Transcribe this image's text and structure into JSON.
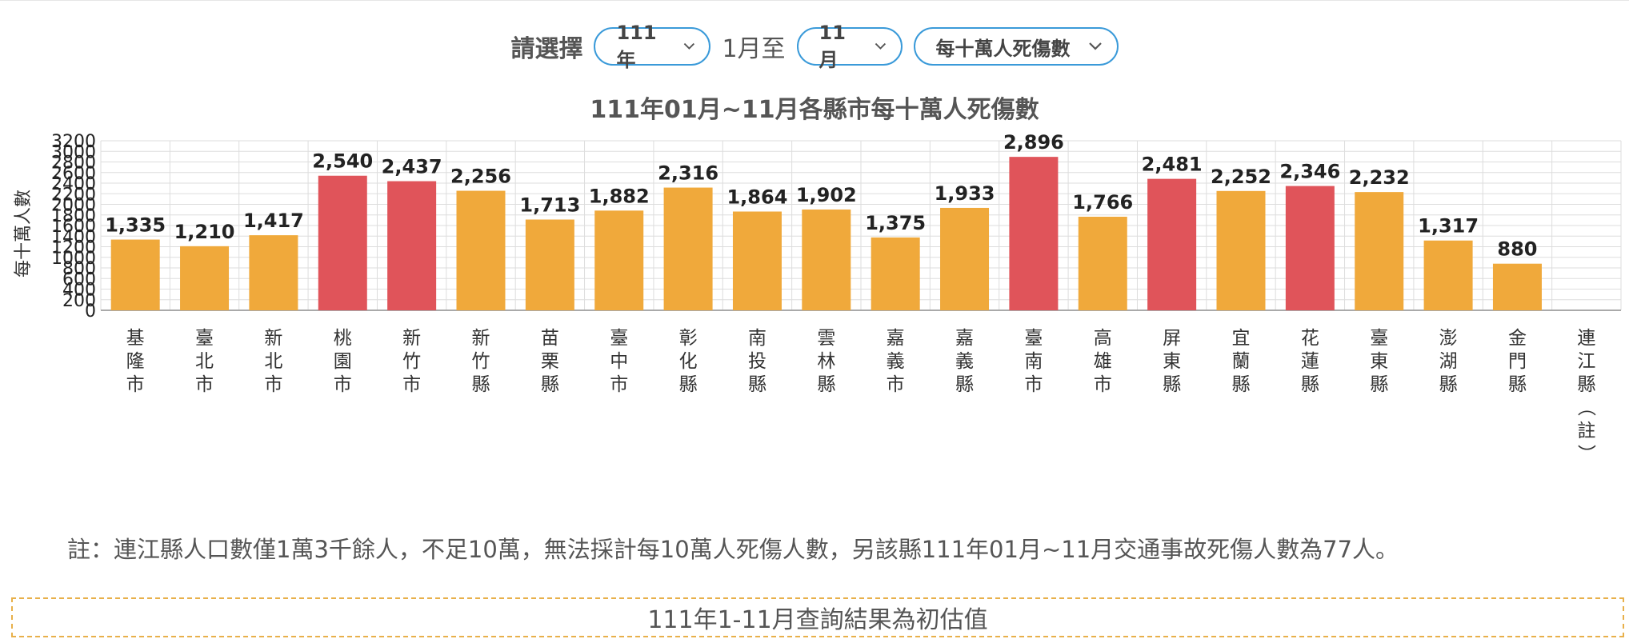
{
  "controls": {
    "prompt": "請選擇",
    "year": "111年",
    "from_text": "1月至",
    "month": "11月",
    "metric": "每十萬人死傷數"
  },
  "chart_data": {
    "type": "bar",
    "title": "111年01月~11月各縣市每十萬人死傷數",
    "ylabel": "每十萬人數",
    "xlabel": "",
    "ylim": [
      0,
      3200
    ],
    "yticks": [
      0,
      200,
      400,
      600,
      800,
      1000,
      1200,
      1400,
      1600,
      1800,
      2000,
      2200,
      2400,
      2600,
      2800,
      3000,
      3200
    ],
    "grid": true,
    "categories": [
      "基隆市",
      "臺北市",
      "新北市",
      "桃園市",
      "新竹市",
      "新竹縣",
      "苗栗縣",
      "臺中市",
      "彰化縣",
      "南投縣",
      "雲林縣",
      "嘉義市",
      "嘉義縣",
      "臺南市",
      "高雄市",
      "屏東縣",
      "宜蘭縣",
      "花蓮縣",
      "臺東縣",
      "澎湖縣",
      "金門縣",
      "連江縣（註）"
    ],
    "values": [
      1335,
      1210,
      1417,
      2540,
      2437,
      2256,
      1713,
      1882,
      2316,
      1864,
      1902,
      1375,
      1933,
      2896,
      1766,
      2481,
      2252,
      2346,
      2232,
      1317,
      880,
      null
    ],
    "value_labels": [
      "1,335",
      "1,210",
      "1,417",
      "2,540",
      "2,437",
      "2,256",
      "1,713",
      "1,882",
      "2,316",
      "1,864",
      "1,902",
      "1,375",
      "1,933",
      "2,896",
      "1,766",
      "2,481",
      "2,252",
      "2,346",
      "2,232",
      "1,317",
      "880",
      ""
    ],
    "highlight": [
      false,
      false,
      false,
      true,
      true,
      false,
      false,
      false,
      false,
      false,
      false,
      false,
      false,
      true,
      false,
      true,
      false,
      true,
      false,
      false,
      false,
      false
    ],
    "colors": {
      "normal": "#f0a93b",
      "highlight": "#e0545a",
      "grid": "#dddddd",
      "axis": "#aaaaaa"
    }
  },
  "note": "註：連江縣人口數僅1萬3千餘人，不足10萬，無法採計每10萬人死傷人數，另該縣111年01月~11月交通事故死傷人數為77人。",
  "estimate_notice": "111年1-11月查詢結果為初估值"
}
